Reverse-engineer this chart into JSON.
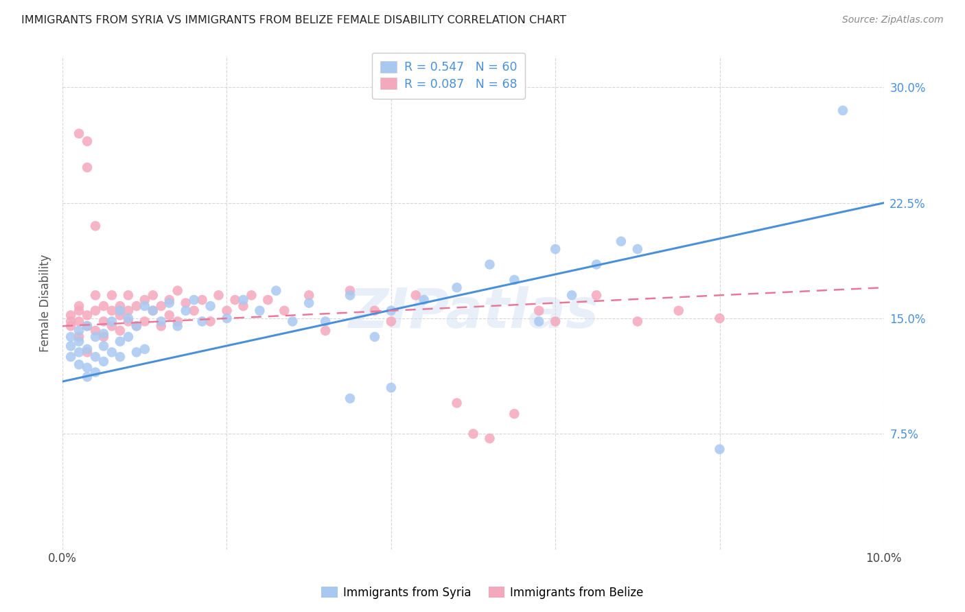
{
  "title": "IMMIGRANTS FROM SYRIA VS IMMIGRANTS FROM BELIZE FEMALE DISABILITY CORRELATION CHART",
  "source": "Source: ZipAtlas.com",
  "ylabel": "Female Disability",
  "xlim": [
    0.0,
    0.1
  ],
  "ylim": [
    0.0,
    0.32
  ],
  "yticks": [
    0.075,
    0.15,
    0.225,
    0.3
  ],
  "ytick_labels": [
    "7.5%",
    "15.0%",
    "22.5%",
    "30.0%"
  ],
  "xticks": [
    0.0,
    0.02,
    0.04,
    0.06,
    0.08,
    0.1
  ],
  "xtick_labels": [
    "0.0%",
    "",
    "",
    "",
    "",
    "10.0%"
  ],
  "color_syria": "#a8c8f0",
  "color_belize": "#f4a8be",
  "line_color_syria": "#4a90d9",
  "line_color_belize": "#e8789a",
  "legend_r_syria": "R = 0.547",
  "legend_n_syria": "N = 60",
  "legend_r_belize": "R = 0.087",
  "legend_n_belize": "N = 68",
  "legend_label_syria": "Immigrants from Syria",
  "legend_label_belize": "Immigrants from Belize",
  "watermark": "ZIPatlas",
  "syria_line": [
    0.0,
    0.1,
    0.109,
    0.225
  ],
  "belize_line": [
    0.0,
    0.1,
    0.145,
    0.17
  ],
  "syria_x": [
    0.001,
    0.001,
    0.001,
    0.002,
    0.002,
    0.002,
    0.002,
    0.003,
    0.003,
    0.003,
    0.003,
    0.004,
    0.004,
    0.004,
    0.005,
    0.005,
    0.005,
    0.006,
    0.006,
    0.007,
    0.007,
    0.007,
    0.008,
    0.008,
    0.009,
    0.009,
    0.01,
    0.01,
    0.011,
    0.012,
    0.013,
    0.014,
    0.015,
    0.016,
    0.017,
    0.018,
    0.02,
    0.022,
    0.024,
    0.026,
    0.028,
    0.03,
    0.032,
    0.035,
    0.038,
    0.04,
    0.044,
    0.048,
    0.052,
    0.058,
    0.06,
    0.062,
    0.065,
    0.068,
    0.07,
    0.035,
    0.04,
    0.055,
    0.08,
    0.095
  ],
  "syria_y": [
    0.125,
    0.132,
    0.138,
    0.128,
    0.135,
    0.142,
    0.12,
    0.13,
    0.118,
    0.145,
    0.112,
    0.138,
    0.125,
    0.115,
    0.14,
    0.122,
    0.132,
    0.148,
    0.128,
    0.155,
    0.135,
    0.125,
    0.15,
    0.138,
    0.145,
    0.128,
    0.158,
    0.13,
    0.155,
    0.148,
    0.16,
    0.145,
    0.155,
    0.162,
    0.148,
    0.158,
    0.15,
    0.162,
    0.155,
    0.168,
    0.148,
    0.16,
    0.148,
    0.165,
    0.138,
    0.155,
    0.162,
    0.17,
    0.185,
    0.148,
    0.195,
    0.165,
    0.185,
    0.2,
    0.195,
    0.098,
    0.105,
    0.175,
    0.065,
    0.285
  ],
  "belize_x": [
    0.001,
    0.001,
    0.001,
    0.002,
    0.002,
    0.002,
    0.002,
    0.003,
    0.003,
    0.003,
    0.004,
    0.004,
    0.004,
    0.005,
    0.005,
    0.005,
    0.006,
    0.006,
    0.006,
    0.007,
    0.007,
    0.007,
    0.008,
    0.008,
    0.008,
    0.009,
    0.009,
    0.01,
    0.01,
    0.011,
    0.011,
    0.012,
    0.012,
    0.013,
    0.013,
    0.014,
    0.014,
    0.015,
    0.016,
    0.017,
    0.018,
    0.019,
    0.02,
    0.021,
    0.022,
    0.023,
    0.025,
    0.027,
    0.03,
    0.032,
    0.035,
    0.038,
    0.04,
    0.043,
    0.002,
    0.003,
    0.003,
    0.004,
    0.05,
    0.055,
    0.06,
    0.065,
    0.07,
    0.075,
    0.08,
    0.048,
    0.052,
    0.058
  ],
  "belize_y": [
    0.148,
    0.152,
    0.145,
    0.155,
    0.148,
    0.158,
    0.138,
    0.145,
    0.152,
    0.128,
    0.155,
    0.142,
    0.165,
    0.148,
    0.158,
    0.138,
    0.155,
    0.145,
    0.165,
    0.152,
    0.158,
    0.142,
    0.165,
    0.148,
    0.155,
    0.158,
    0.145,
    0.162,
    0.148,
    0.165,
    0.155,
    0.158,
    0.145,
    0.162,
    0.152,
    0.168,
    0.148,
    0.16,
    0.155,
    0.162,
    0.148,
    0.165,
    0.155,
    0.162,
    0.158,
    0.165,
    0.162,
    0.155,
    0.165,
    0.142,
    0.168,
    0.155,
    0.148,
    0.165,
    0.27,
    0.265,
    0.248,
    0.21,
    0.075,
    0.088,
    0.148,
    0.165,
    0.148,
    0.155,
    0.15,
    0.095,
    0.072,
    0.155
  ]
}
